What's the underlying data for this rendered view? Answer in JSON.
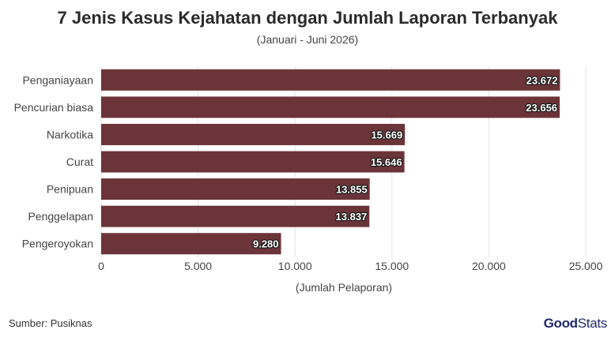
{
  "header": {
    "title": "7 Jenis Kasus Kejahatan dengan Jumlah Laporan Terbanyak",
    "subtitle": "(Januari - Juni 2026)"
  },
  "footer": {
    "source": "Sumber: Pusiknas",
    "logo_part1": "Good",
    "logo_part2": "Stats"
  },
  "colors": {
    "bar": "#6b3438",
    "grid": "#e3e3e3",
    "label_halo": "#1a1a1a"
  },
  "chart_data": {
    "type": "bar",
    "orientation": "horizontal",
    "categories": [
      "Penganiayaan",
      "Pencurian biasa",
      "Narkotika",
      "Curat",
      "Penipuan",
      "Penggelapan",
      "Pengeroyokan"
    ],
    "values": [
      23672,
      23656,
      15669,
      15646,
      13855,
      13837,
      9280
    ],
    "value_labels": [
      "23.672",
      "23.656",
      "15.669",
      "15.646",
      "13.855",
      "13.837",
      "9.280"
    ],
    "xlim": [
      0,
      25000
    ],
    "x_ticks": [
      0,
      5000,
      10000,
      15000,
      20000,
      25000
    ],
    "x_tick_labels": [
      "0",
      "5.000",
      "10.000",
      "15.000",
      "20.000",
      "25.000"
    ],
    "xlabel": "(Jumlah Pelaporan)",
    "ylabel": "",
    "grid": true
  }
}
